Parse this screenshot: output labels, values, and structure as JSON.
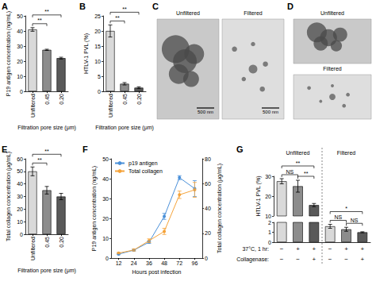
{
  "chart_data": [
    {
      "type": "bar",
      "title": "A",
      "categories": [
        "Unfiltered",
        "0.45",
        "0.20"
      ],
      "values": [
        41,
        27.5,
        22
      ],
      "errors": [
        1.2,
        0.4,
        0.6
      ],
      "colors": [
        "#d9d9d9",
        "#8c8c8c",
        "#595959"
      ],
      "x_label": "Filtration pore size (μm)",
      "y_label": "P19 antigen concentration (ng/mL)",
      "ylim": [
        0,
        50
      ],
      "yticks": [
        0,
        10,
        20,
        30,
        40,
        50
      ],
      "grid": false,
      "significance": [
        {
          "from": 0,
          "to": 1,
          "label": "**"
        },
        {
          "from": 0,
          "to": 2,
          "label": "**"
        }
      ]
    },
    {
      "type": "bar",
      "title": "B",
      "categories": [
        "Unfiltered",
        "0.45",
        "0.20"
      ],
      "values": [
        20,
        2.5,
        1.2
      ],
      "errors": [
        2,
        0.4,
        0.3
      ],
      "colors": [
        "#d9d9d9",
        "#8c8c8c",
        "#595959"
      ],
      "x_label": "Filtration pore size (μm)",
      "y_label": "HTLV-1 PVL (%)",
      "ylim": [
        0,
        25
      ],
      "yticks": [
        0,
        5,
        10,
        15,
        20,
        25
      ],
      "grid": false,
      "significance": [
        {
          "from": 0,
          "to": 1,
          "label": "**"
        },
        {
          "from": 0,
          "to": 2,
          "label": "**"
        }
      ]
    },
    {
      "type": "image",
      "title": "C",
      "images": [
        {
          "label": "Unfiltered",
          "scale_bar": "500 nm"
        },
        {
          "label": "Filtered",
          "scale_bar": "500 nm"
        }
      ]
    },
    {
      "type": "image",
      "title": "D",
      "images": [
        {
          "label": "Unfiltered"
        },
        {
          "label": "Filtered"
        }
      ]
    },
    {
      "type": "bar",
      "title": "E",
      "categories": [
        "Unfiltered",
        "0.45",
        "0.20"
      ],
      "values": [
        50,
        35,
        30
      ],
      "errors": [
        3.5,
        3,
        2.5
      ],
      "colors": [
        "#d9d9d9",
        "#8c8c8c",
        "#595959"
      ],
      "x_label": "Filtration pore size (μm)",
      "y_label": "Total collagen concentration (μg/mL)",
      "ylim": [
        0,
        60
      ],
      "yticks": [
        0,
        10,
        20,
        30,
        40,
        50,
        60
      ],
      "grid": false,
      "significance": [
        {
          "from": 0,
          "to": 1,
          "label": "**"
        },
        {
          "from": 0,
          "to": 2,
          "label": "**"
        }
      ]
    },
    {
      "type": "line",
      "title": "F",
      "categories": [
        "12",
        "24",
        "36",
        "48",
        "72",
        "96"
      ],
      "x_label": "Hours post infection",
      "y_label": "P19 antigen concentration (ng/mL)",
      "y2_label": "Total collagen concentration (μg/mL)",
      "ylim": [
        0,
        50
      ],
      "yticks": [
        0,
        10,
        20,
        30,
        40,
        50
      ],
      "y2lim": [
        0,
        80
      ],
      "y2ticks": [
        0,
        20,
        40,
        60,
        80
      ],
      "grid": false,
      "legend": "upper left",
      "series": [
        {
          "name": "p19 antigen",
          "color": "#4a90d9",
          "marker": "circle",
          "values": [
            2,
            4,
            8,
            21,
            40.5,
            35
          ],
          "errors": [
            0.3,
            0.4,
            0.6,
            1.5,
            1,
            4
          ]
        },
        {
          "name": "Total collagen",
          "color": "#f5a33a",
          "marker": "circle",
          "axis": "y2",
          "values": [
            4,
            6.5,
            14,
            21.5,
            51,
            55
          ],
          "errors": [
            0.5,
            0.8,
            1.5,
            2.5,
            3,
            6
          ]
        }
      ]
    },
    {
      "type": "bar",
      "title": "G",
      "categories": [
        null,
        null,
        null,
        null,
        null,
        null
      ],
      "y_label": "HTLV-1 PVL (%)",
      "ylim": [
        0,
        30
      ],
      "yticks": [
        0,
        1,
        2,
        10,
        20,
        30
      ],
      "break": [
        2,
        10
      ],
      "grid": false,
      "groups": [
        {
          "label": "Unfiltered",
          "from": 0,
          "to": 2
        },
        {
          "label": "Filtered",
          "from": 3,
          "to": 5
        }
      ],
      "conditions": [
        {
          "label": "37°C, 1 hr:",
          "values": [
            "−",
            "+",
            "+",
            "−",
            "+",
            "+"
          ]
        },
        {
          "label": "Collagenase:",
          "values": [
            "−",
            "−",
            "+",
            "−",
            "−",
            "+"
          ]
        }
      ],
      "series": [
        {
          "values": [
            27.5,
            25,
            15.5,
            null,
            null,
            null
          ],
          "errors": [
            1.3,
            3,
            0.8,
            null,
            null,
            null
          ],
          "colors": [
            "#d9d9d9",
            "#8c8c8c",
            "#595959",
            "#d9d9d9",
            "#8c8c8c",
            "#595959"
          ]
        },
        {
          "values": [
            null,
            null,
            null,
            1.6,
            1.3,
            1.0
          ],
          "errors": [
            null,
            null,
            null,
            0.2,
            0.2,
            0.05
          ],
          "colors": [
            "#d9d9d9",
            "#8c8c8c",
            "#595959",
            "#d9d9d9",
            "#8c8c8c",
            "#595959"
          ]
        }
      ],
      "significance": [
        {
          "from": 0,
          "to": 1,
          "label": "NS"
        },
        {
          "from": 1,
          "to": 2,
          "label": "**"
        },
        {
          "from": 0,
          "to": 2,
          "label": "**"
        },
        {
          "from": 3,
          "to": 4,
          "label": "NS"
        },
        {
          "from": 4,
          "to": 5,
          "label": "NS"
        },
        {
          "from": 3,
          "to": 5,
          "label": "*"
        }
      ]
    }
  ]
}
